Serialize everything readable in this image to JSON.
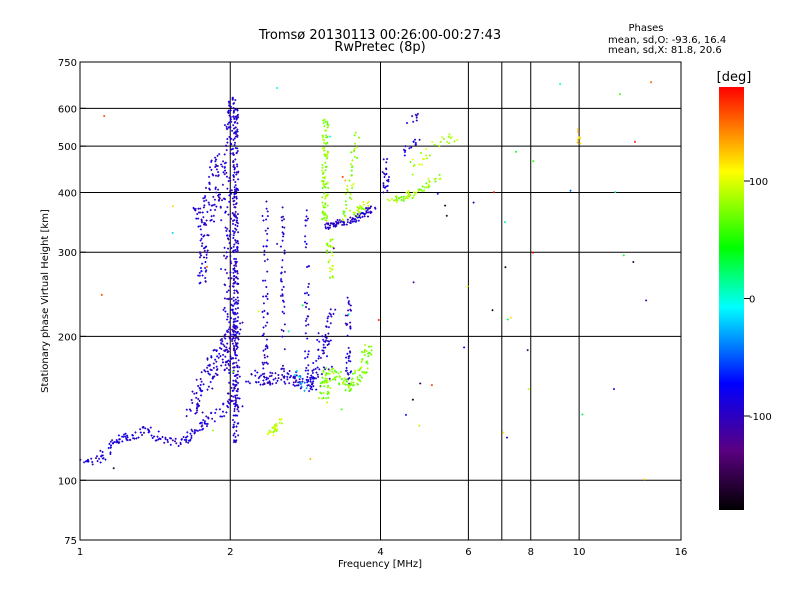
{
  "header": {
    "title_line1": "Tromsø 20130113 00:26:00-00:27:43",
    "title_line2": "RwPretec (8p)"
  },
  "stats": {
    "label": "Phases",
    "line1": "mean, sd,O: -93.6, 16.4",
    "line2": "mean, sd,X:  81.8, 20.6"
  },
  "chart_data": {
    "type": "scatter",
    "xlabel": "Frequency [MHz]",
    "ylabel": "Stationary phase Virtual Height [km]",
    "x_scale": "log",
    "y_scale": "log",
    "xlim": [
      1,
      16
    ],
    "ylim": [
      75,
      750
    ],
    "x_ticks": [
      1,
      2,
      4,
      6,
      8,
      10,
      16
    ],
    "x_tick_labels": [
      "1",
      "2",
      "4",
      "6",
      "8",
      "10",
      "16"
    ],
    "x_gridlines": [
      2,
      4,
      6,
      7,
      8,
      10
    ],
    "y_ticks": [
      75,
      100,
      200,
      300,
      400,
      500,
      600,
      750
    ],
    "y_tick_labels": [
      "75",
      "100",
      "200",
      "300",
      "400",
      "500",
      "600",
      "750"
    ],
    "y_gridlines": [
      100,
      200,
      300,
      400,
      500,
      600
    ],
    "grid": true,
    "colorbar": {
      "label": "[deg]",
      "min": -180,
      "max": 180,
      "ticks": [
        100,
        0,
        -100
      ],
      "tick_labels": [
        "100",
        "0",
        "-100"
      ],
      "colormap": [
        "#000000",
        "#5a0080",
        "#0000ff",
        "#00ffff",
        "#00ff00",
        "#ffff00",
        "#ff0000"
      ]
    },
    "series": [
      {
        "trace": [
          [
            1.0,
            112
          ],
          [
            1.05,
            109
          ],
          [
            1.1,
            110
          ],
          [
            1.15,
            118
          ],
          [
            1.2,
            122
          ],
          [
            1.3,
            124
          ],
          [
            1.35,
            128
          ],
          [
            1.45,
            121
          ],
          [
            1.6,
            120
          ],
          [
            1.75,
            130
          ],
          [
            1.85,
            136
          ],
          [
            1.95,
            140
          ],
          [
            2.0,
            148
          ]
        ],
        "spread": 0.05,
        "phase": -92,
        "n": 170
      },
      {
        "trace": [
          [
            1.7,
            140
          ],
          [
            1.8,
            165
          ],
          [
            1.9,
            180
          ],
          [
            2.0,
            200
          ],
          [
            2.05,
            215
          ]
        ],
        "spread": 0.08,
        "phase": -95,
        "n": 130
      },
      {
        "trace": [
          [
            1.8,
            350
          ],
          [
            1.85,
            420
          ],
          [
            1.9,
            480
          ],
          [
            1.95,
            400
          ],
          [
            2.0,
            300
          ],
          [
            2.0,
            230
          ],
          [
            2.02,
            160
          ],
          [
            2.05,
            140
          ]
        ],
        "spread": 0.07,
        "phase": -96,
        "n": 240
      },
      {
        "trace": [
          [
            1.75,
            260
          ],
          [
            1.78,
            330
          ],
          [
            1.72,
            370
          ]
        ],
        "spread": 0.04,
        "phase": -95,
        "n": 60
      },
      {
        "trace": [
          [
            1.95,
            520
          ],
          [
            2.0,
            580
          ],
          [
            2.02,
            630
          ],
          [
            1.98,
            480
          ]
        ],
        "spread": 0.03,
        "phase": -97,
        "n": 50
      },
      {
        "trace": [
          [
            2.05,
            120
          ],
          [
            2.05,
            600
          ]
        ],
        "spread": 0.025,
        "phase": -95,
        "n": 280
      },
      {
        "trace": [
          [
            2.2,
            165
          ],
          [
            2.4,
            162
          ],
          [
            2.6,
            165
          ],
          [
            2.75,
            160
          ],
          [
            2.95,
            162
          ],
          [
            3.1,
            170
          ]
        ],
        "spread": 0.08,
        "phase": -95,
        "n": 110
      },
      {
        "trace": [
          [
            2.35,
            170
          ],
          [
            2.35,
            280
          ],
          [
            2.35,
            390
          ]
        ],
        "spread": 0.025,
        "phase": -93,
        "n": 55
      },
      {
        "trace": [
          [
            2.55,
            160
          ],
          [
            2.55,
            380
          ]
        ],
        "spread": 0.02,
        "phase": -92,
        "n": 45
      },
      {
        "trace": [
          [
            2.85,
            160
          ],
          [
            2.85,
            370
          ]
        ],
        "spread": 0.02,
        "phase": -92,
        "n": 40
      },
      {
        "trace": [
          [
            2.9,
            150
          ],
          [
            3.05,
            200
          ]
        ],
        "spread": 0.04,
        "phase": -88,
        "n": 30
      },
      {
        "trace": [
          [
            2.7,
            170
          ],
          [
            2.8,
            155
          ]
        ],
        "spread": 0.04,
        "phase": -30,
        "n": 12
      },
      {
        "trace": [
          [
            3.1,
            340
          ],
          [
            3.3,
            345
          ],
          [
            3.5,
            350
          ],
          [
            3.7,
            360
          ],
          [
            3.85,
            370
          ]
        ],
        "spread": 0.04,
        "phase": -95,
        "n": 90
      },
      {
        "trace": [
          [
            3.45,
            160
          ],
          [
            3.45,
            240
          ]
        ],
        "spread": 0.025,
        "phase": -94,
        "n": 40
      },
      {
        "trace": [
          [
            3.1,
            180
          ],
          [
            3.2,
            230
          ]
        ],
        "spread": 0.03,
        "phase": -94,
        "n": 30
      },
      {
        "trace": [
          [
            3.05,
            145
          ],
          [
            3.15,
            170
          ],
          [
            3.3,
            165
          ],
          [
            3.5,
            155
          ],
          [
            3.7,
            175
          ],
          [
            3.8,
            190
          ]
        ],
        "spread": 0.05,
        "phase": 75,
        "n": 130
      },
      {
        "trace": [
          [
            3.1,
            350
          ],
          [
            3.1,
            570
          ]
        ],
        "spread": 0.03,
        "phase": 78,
        "n": 90
      },
      {
        "trace": [
          [
            3.2,
            260
          ],
          [
            3.15,
            330
          ]
        ],
        "spread": 0.03,
        "phase": 82,
        "n": 25
      },
      {
        "trace": [
          [
            3.4,
            350
          ],
          [
            3.55,
            470
          ],
          [
            3.6,
            560
          ]
        ],
        "spread": 0.035,
        "phase": 80,
        "n": 40
      },
      {
        "trace": [
          [
            3.55,
            360
          ],
          [
            3.75,
            380
          ]
        ],
        "spread": 0.03,
        "phase": 85,
        "n": 25
      },
      {
        "trace": [
          [
            2.4,
            125
          ],
          [
            2.55,
            135
          ]
        ],
        "spread": 0.03,
        "phase": 95,
        "n": 30
      },
      {
        "trace": [
          [
            4.15,
            385
          ],
          [
            4.45,
            390
          ],
          [
            4.7,
            400
          ],
          [
            5.0,
            415
          ],
          [
            5.2,
            435
          ]
        ],
        "spread": 0.04,
        "phase": 80,
        "n": 60
      },
      {
        "trace": [
          [
            4.1,
            400
          ],
          [
            4.1,
            470
          ]
        ],
        "spread": 0.03,
        "phase": -95,
        "n": 22
      },
      {
        "trace": [
          [
            4.5,
            440
          ],
          [
            4.9,
            480
          ],
          [
            5.3,
            510
          ],
          [
            5.7,
            530
          ]
        ],
        "spread": 0.06,
        "phase": 88,
        "n": 28
      },
      {
        "trace": [
          [
            4.4,
            480
          ],
          [
            4.8,
            520
          ]
        ],
        "spread": 0.05,
        "phase": -90,
        "n": 14
      },
      {
        "trace": [
          [
            4.4,
            550
          ],
          [
            4.8,
            590
          ]
        ],
        "spread": 0.05,
        "phase": -95,
        "n": 8
      },
      {
        "trace": [
          [
            1.05,
            100
          ],
          [
            14,
            700
          ]
        ],
        "spread": 0.9,
        "phase": 0,
        "n": 60,
        "random_phase": true
      },
      {
        "trace": [
          [
            10,
            500
          ],
          [
            10,
            540
          ]
        ],
        "spread": 0.02,
        "phase": 120,
        "n": 8
      }
    ]
  }
}
